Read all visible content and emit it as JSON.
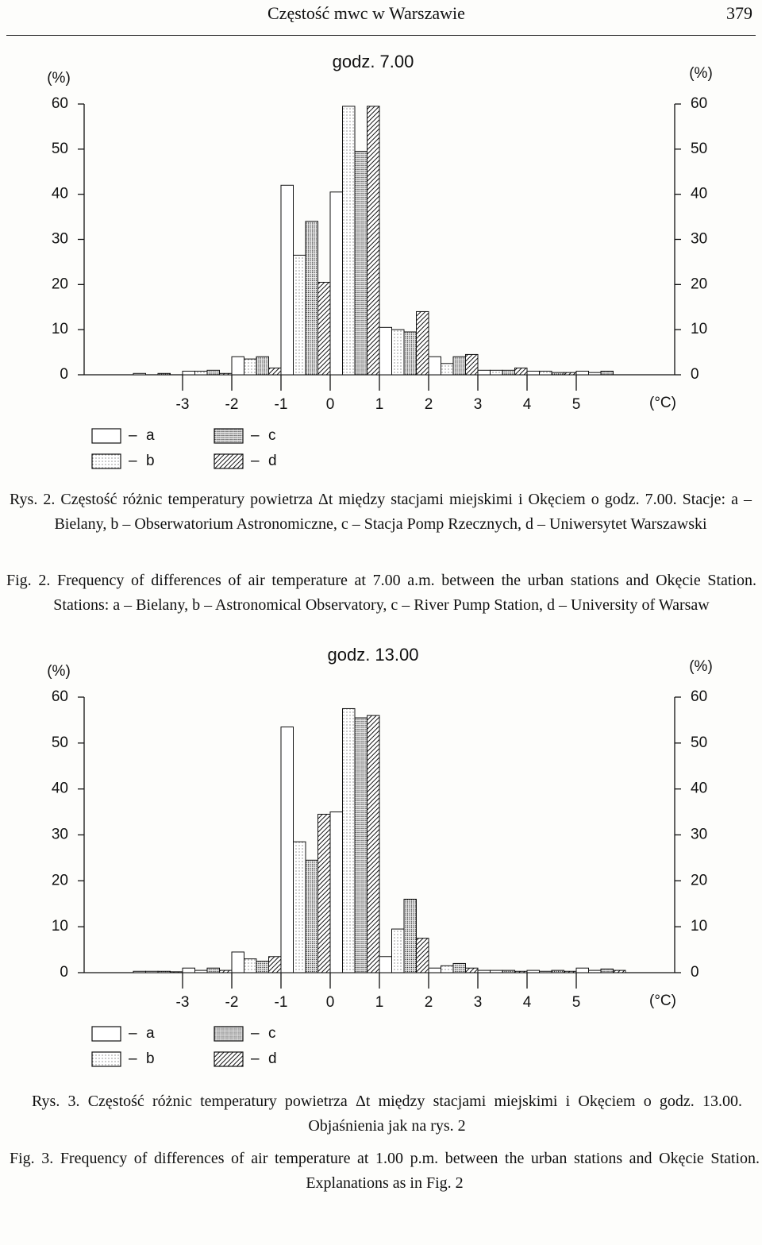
{
  "header": {
    "title": "Częstość mwc w Warszawie",
    "page": "379"
  },
  "chart_data": [
    {
      "type": "histogram",
      "title": "godz. 7.00",
      "y_label": "(%)",
      "y2_label": "(%)",
      "x_label": "(°C)",
      "bins": [
        -4,
        -3,
        -2,
        -1,
        0,
        1,
        2,
        3,
        4,
        5,
        6
      ],
      "series": [
        {
          "name": "a",
          "color": "#ffffff",
          "values": [
            0.3,
            0.8,
            4,
            42,
            40.5,
            10.5,
            4,
            1,
            0.8,
            0.8
          ]
        },
        {
          "name": "b",
          "color": "#ffffff",
          "pattern": "sparse-dots",
          "values": [
            0,
            0.8,
            3.5,
            26.5,
            59.5,
            10,
            2.5,
            1,
            0.8,
            0.5
          ]
        },
        {
          "name": "c",
          "color": "#eeeeee",
          "pattern": "dense-dots",
          "values": [
            0.3,
            1,
            4,
            34,
            49.5,
            9.5,
            4,
            1,
            0.5,
            0.8
          ]
        },
        {
          "name": "d",
          "color": "#ffffff",
          "pattern": "hatch",
          "values": [
            0,
            0.3,
            1.5,
            20.5,
            59.5,
            14,
            4.5,
            1.5,
            0.5,
            0
          ]
        }
      ],
      "xlim": [
        -5,
        7
      ],
      "xticks": [
        -3,
        -2,
        -1,
        0,
        1,
        2,
        3,
        4,
        5
      ],
      "ylim": [
        0,
        60
      ],
      "yticks": [
        0,
        10,
        20,
        30,
        40,
        50,
        60
      ],
      "y2lim": [
        0,
        60
      ],
      "y2ticks": [
        0,
        10,
        20,
        30,
        40,
        50,
        60
      ]
    },
    {
      "type": "histogram",
      "title": "godz. 13.00",
      "y_label": "(%)",
      "y2_label": "(%)",
      "x_label": "(°C)",
      "bins": [
        -4,
        -3,
        -2,
        -1,
        0,
        1,
        2,
        3,
        4,
        5,
        6
      ],
      "series": [
        {
          "name": "a",
          "color": "#ffffff",
          "values": [
            0.3,
            1,
            4.5,
            53.5,
            35,
            3.5,
            1,
            0.5,
            0.5,
            1
          ]
        },
        {
          "name": "b",
          "color": "#ffffff",
          "pattern": "sparse-dots",
          "values": [
            0.3,
            0.5,
            3,
            28.5,
            57.5,
            9.5,
            1.5,
            0.5,
            0.3,
            0.5
          ]
        },
        {
          "name": "c",
          "color": "#eeeeee",
          "pattern": "dense-dots",
          "values": [
            0.3,
            1,
            2.5,
            24.5,
            55.5,
            16,
            2,
            0.5,
            0.5,
            0.8
          ]
        },
        {
          "name": "d",
          "color": "#ffffff",
          "pattern": "hatch",
          "values": [
            0.2,
            0.5,
            3.5,
            34.5,
            56,
            7.5,
            1,
            0.3,
            0.3,
            0.5
          ]
        }
      ],
      "xlim": [
        -5,
        7
      ],
      "xticks": [
        -3,
        -2,
        -1,
        0,
        1,
        2,
        3,
        4,
        5
      ],
      "ylim": [
        0,
        60
      ],
      "yticks": [
        0,
        10,
        20,
        30,
        40,
        50,
        60
      ],
      "y2lim": [
        0,
        60
      ],
      "y2ticks": [
        0,
        10,
        20,
        30,
        40,
        50,
        60
      ]
    }
  ],
  "captions": [
    {
      "pl": "Rys. 2. Częstość różnic temperatury powietrza Δt między stacjami miejskimi i Okęciem o godz. 7.00. Stacje: a – Bielany, b – Obserwatorium Astronomiczne, c – Stacja Pomp Rzecznych, d – Uniwersytet Warszawski",
      "en": "Fig. 2. Frequency of differences of air temperature at 7.00 a.m. between the urban stations and Okęcie Station. Stations: a – Bielany, b – Astronomical Observatory, c – River Pump Station, d – University of Warsaw"
    },
    {
      "pl": "Rys. 3. Częstość różnic temperatury powietrza Δt między stacjami miejskimi i Okęciem o godz. 13.00. Objaśnienia jak na rys. 2",
      "en": "Fig. 3. Frequency of differences of air temperature at 1.00 p.m. between the urban stations and Okęcie Station. Explanations as in Fig. 2"
    }
  ]
}
